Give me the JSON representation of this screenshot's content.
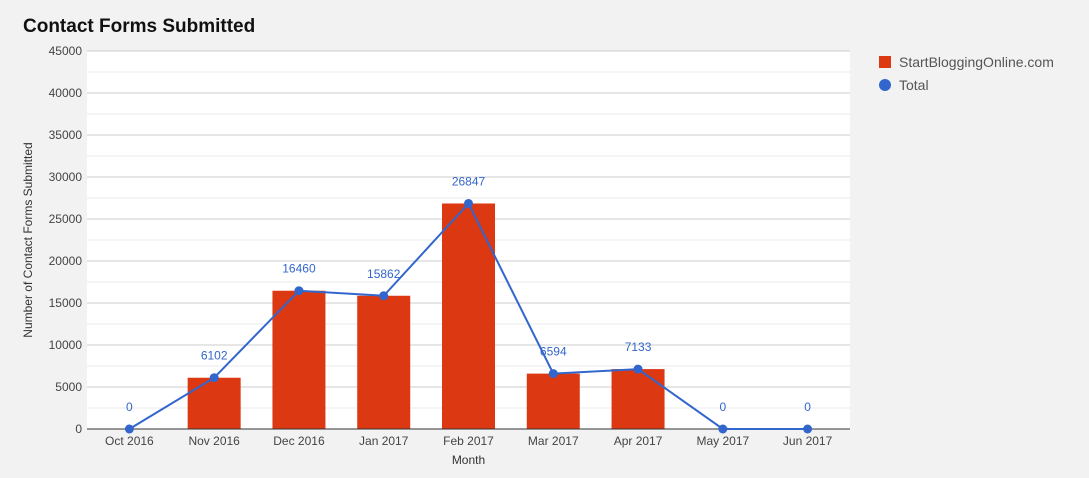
{
  "chart_data": {
    "type": "bar",
    "title": "Contact Forms Submitted",
    "xlabel": "Month",
    "ylabel": "Number of Contact Forms Submitted",
    "ylim": [
      0,
      45000
    ],
    "yticks": [
      "0",
      "5000",
      "10000",
      "15000",
      "20000",
      "25000",
      "30000",
      "35000",
      "40000",
      "45000"
    ],
    "grid": true,
    "legend_position": "right",
    "categories": [
      "Oct 2016",
      "Nov 2016",
      "Dec 2016",
      "Jan 2017",
      "Feb 2017",
      "Mar 2017",
      "Apr 2017",
      "May 2017",
      "Jun 2017"
    ],
    "series": [
      {
        "name": "StartBloggingOnline.com",
        "type": "bar",
        "color": "#dc3912",
        "values": [
          0,
          6102,
          16460,
          15862,
          26847,
          6594,
          7133,
          0,
          0
        ]
      },
      {
        "name": "Total",
        "type": "line",
        "color": "#3366cc",
        "values": [
          0,
          6102,
          16460,
          15862,
          26847,
          6594,
          7133,
          0,
          0
        ],
        "data_labels": [
          "0",
          "6102",
          "16460",
          "15862",
          "26847",
          "6594",
          "7133",
          "0",
          "0"
        ]
      }
    ]
  }
}
